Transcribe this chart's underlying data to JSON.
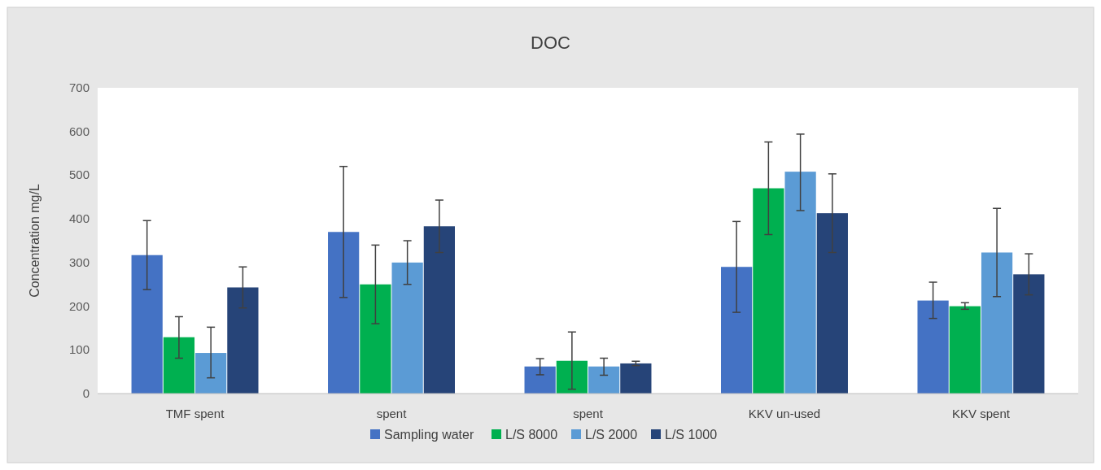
{
  "chart_data": {
    "type": "bar",
    "title": "DOC",
    "ylabel": "Concentration mg/L",
    "categories": [
      "TMF spent",
      "spent",
      "spent",
      "KKV un-used",
      "KKV spent"
    ],
    "series": [
      {
        "name": "Sampling water",
        "color": "#4472c4",
        "values": [
          317,
          370,
          62,
          290,
          213
        ],
        "errors": [
          [
            238,
            396
          ],
          [
            220,
            520
          ],
          [
            43,
            80
          ],
          [
            186,
            394
          ],
          [
            172,
            255
          ]
        ]
      },
      {
        "name": "L/S 8000",
        "color": "#00b050",
        "values": [
          129,
          250,
          75,
          470,
          200
        ],
        "errors": [
          [
            81,
            176
          ],
          [
            160,
            340
          ],
          [
            10,
            141
          ],
          [
            364,
            576
          ],
          [
            193,
            208
          ]
        ]
      },
      {
        "name": "L/S 2000",
        "color": "#5b9bd5",
        "values": [
          93,
          300,
          62,
          508,
          323
        ],
        "errors": [
          [
            36,
            152
          ],
          [
            250,
            350
          ],
          [
            42,
            81
          ],
          [
            419,
            594
          ],
          [
            222,
            424
          ]
        ]
      },
      {
        "name": "L/S 1000",
        "color": "#264478",
        "values": [
          243,
          383,
          69,
          413,
          273
        ],
        "errors": [
          [
            196,
            290
          ],
          [
            323,
            443
          ],
          [
            64,
            74
          ],
          [
            323,
            503
          ],
          [
            226,
            320
          ]
        ]
      }
    ],
    "ylim": [
      0,
      700
    ],
    "yticks": [
      0,
      100,
      200,
      300,
      400,
      500,
      600,
      700
    ],
    "legend": "bottom"
  }
}
